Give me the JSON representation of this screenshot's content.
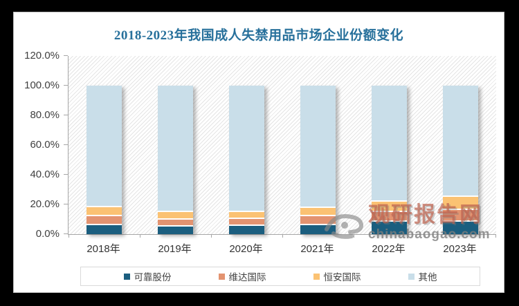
{
  "watermark": {
    "name": "观研报告网",
    "url": "chinabaogao.com",
    "logo": "eye-swirl-logo",
    "name_color": "#be6450",
    "url_color": "#7d7d7d"
  },
  "style": {
    "outer_background": "#000000",
    "chart_background": "#ffffff",
    "title_color": "#27709b",
    "axis_color": "#a6a6a6",
    "axis_text_color": "#3f3f3f"
  },
  "chart_data": {
    "type": "bar",
    "stacked": true,
    "title": "2018-2023年我国成人失禁用品市场企业份额变化",
    "categories": [
      "2018年",
      "2019年",
      "2020年",
      "2021年",
      "2022年",
      "2023年"
    ],
    "series": [
      {
        "name": "可靠股份",
        "color": "#1b5e7f",
        "values": [
          7.0,
          6.0,
          6.5,
          7.0,
          9.5,
          9.5
        ]
      },
      {
        "name": "维达国际",
        "color": "#e39370",
        "values": [
          6.0,
          4.5,
          4.5,
          6.0,
          6.5,
          7.5
        ]
      },
      {
        "name": "恒安国际",
        "color": "#fbc273",
        "values": [
          6.0,
          5.5,
          5.0,
          5.5,
          7.0,
          9.0
        ]
      },
      {
        "name": "其他",
        "color": "#c9dee9",
        "values": [
          81.0,
          84.0,
          84.0,
          81.5,
          77.0,
          74.0
        ]
      }
    ],
    "xlabel": "",
    "ylabel": "",
    "ylim": [
      0,
      120
    ],
    "ytick_step": 20,
    "ytick_labels": [
      "0.0%",
      "20.0%",
      "40.0%",
      "60.0%",
      "80.0%",
      "100.0%",
      "120.0%"
    ],
    "grid": false,
    "plot_background_pattern": "light-diagonal-hatch",
    "bar_shadow": true,
    "legend_position": "bottom"
  }
}
